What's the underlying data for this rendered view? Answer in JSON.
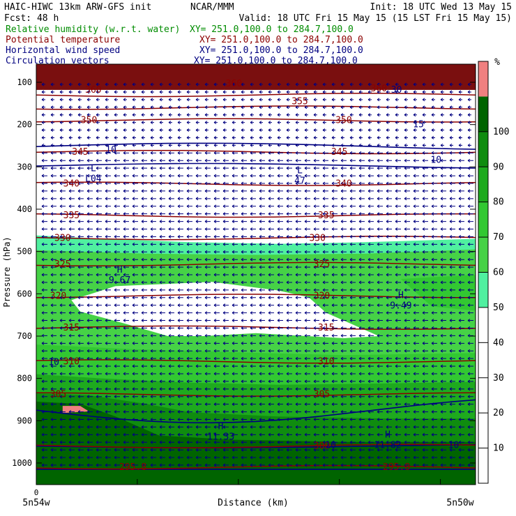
{
  "header": {
    "line1_left": "HAIC-HIWC 13km ARW-GFS init",
    "line1_center": "NCAR/MMM",
    "line1_right": "Init: 18 UTC Wed 13 May 15",
    "line2_left": "Fcst:   48 h",
    "line2_right": "Valid: 18 UTC Fri 15 May 15 (15 LST Fri 15 May 15)",
    "fields": [
      {
        "name": "Relative humidity (w.r.t. water)",
        "xy": "XY= 251.0,100.0 to 284.7,100.0",
        "color": "#008c00"
      },
      {
        "name": "Potential temperature",
        "xy": "XY= 251.0,100.0 to 284.7,100.0",
        "color": "#8b0000"
      },
      {
        "name": "Horizontal wind speed",
        "xy": "XY= 251.0,100.0 to 284.7,100.0",
        "color": "#000080"
      },
      {
        "name": "Circulation vectors",
        "xy": "XY= 251.0,100.0 to 284.7,100.0",
        "color": "#000080"
      }
    ]
  },
  "chart_data": {
    "type": "cross-section",
    "ylabel": "Pressure (hPa)",
    "xlabel": "Distance (km)",
    "x_tick_origin": "0",
    "x_left_label": "5n54w",
    "x_right_label": "5n50w",
    "y_ticks": [
      100,
      200,
      300,
      400,
      500,
      600,
      700,
      800,
      900,
      1000
    ],
    "ylim": [
      1050,
      50
    ],
    "colorbar": {
      "unit": "%",
      "levels": [
        10,
        20,
        30,
        40,
        50,
        60,
        70,
        80,
        90,
        100
      ],
      "colors": [
        "#ffffff",
        "#ffffff",
        "#ffffff",
        "#ffffff",
        "#ffffff",
        "#50f0a0",
        "#46d246",
        "#32c832",
        "#1eaa1e",
        "#0f8c0f",
        "#006400",
        "#f08080"
      ]
    },
    "theta_contours": [
      {
        "value": 360,
        "p": 130
      },
      {
        "value": 355,
        "p": 160
      },
      {
        "value": 350,
        "p": 190
      },
      {
        "value": 345,
        "p": 265
      },
      {
        "value": 340,
        "p": 340
      },
      {
        "value": 335,
        "p": 415
      },
      {
        "value": 330,
        "p": 468
      },
      {
        "value": 325,
        "p": 530
      },
      {
        "value": 320,
        "p": 605
      },
      {
        "value": 315,
        "p": 680
      },
      {
        "value": 310,
        "p": 760
      },
      {
        "value": 305,
        "p": 838
      },
      {
        "value": 300,
        "p": 960
      },
      {
        "value": 295.8,
        "p": 1010
      }
    ],
    "contour_labels": [
      {
        "text": "360",
        "x": 0.13,
        "p": 118,
        "color": "#8b0000"
      },
      {
        "text": "360",
        "x": 0.45,
        "p": 103,
        "color": "#8b0000"
      },
      {
        "text": "360",
        "x": 0.78,
        "p": 115,
        "color": "#8b0000"
      },
      {
        "text": "355",
        "x": 0.6,
        "p": 145,
        "color": "#8b0000"
      },
      {
        "text": "350",
        "x": 0.12,
        "p": 190,
        "color": "#8b0000"
      },
      {
        "text": "350",
        "x": 0.7,
        "p": 190,
        "color": "#8b0000"
      },
      {
        "text": "345",
        "x": 0.1,
        "p": 265,
        "color": "#8b0000"
      },
      {
        "text": "345",
        "x": 0.69,
        "p": 265,
        "color": "#8b0000"
      },
      {
        "text": "340",
        "x": 0.08,
        "p": 340,
        "color": "#8b0000"
      },
      {
        "text": "340",
        "x": 0.7,
        "p": 340,
        "color": "#8b0000"
      },
      {
        "text": "335",
        "x": 0.08,
        "p": 415,
        "color": "#8b0000"
      },
      {
        "text": "335",
        "x": 0.66,
        "p": 415,
        "color": "#8b0000"
      },
      {
        "text": "330",
        "x": 0.06,
        "p": 468,
        "color": "#8b0000"
      },
      {
        "text": "330",
        "x": 0.64,
        "p": 468,
        "color": "#8b0000"
      },
      {
        "text": "325",
        "x": 0.06,
        "p": 530,
        "color": "#8b0000"
      },
      {
        "text": "325",
        "x": 0.65,
        "p": 530,
        "color": "#8b0000"
      },
      {
        "text": "320",
        "x": 0.05,
        "p": 605,
        "color": "#8b0000"
      },
      {
        "text": "320",
        "x": 0.65,
        "p": 605,
        "color": "#8b0000"
      },
      {
        "text": "315",
        "x": 0.08,
        "p": 680,
        "color": "#8b0000"
      },
      {
        "text": "315",
        "x": 0.66,
        "p": 680,
        "color": "#8b0000"
      },
      {
        "text": "310",
        "x": 0.08,
        "p": 760,
        "color": "#8b0000"
      },
      {
        "text": "310",
        "x": 0.66,
        "p": 760,
        "color": "#8b0000"
      },
      {
        "text": "305",
        "x": 0.05,
        "p": 838,
        "color": "#8b0000"
      },
      {
        "text": "305",
        "x": 0.65,
        "p": 838,
        "color": "#8b0000"
      },
      {
        "text": "300",
        "x": 0.65,
        "p": 960,
        "color": "#8b0000"
      },
      {
        "text": "295.8",
        "x": 0.22,
        "p": 1010,
        "color": "#8b0000"
      },
      {
        "text": "295.8",
        "x": 0.82,
        "p": 1010,
        "color": "#8b0000"
      },
      {
        "text": "30",
        "x": 0.82,
        "p": 118,
        "color": "#000080"
      },
      {
        "text": "15",
        "x": 0.87,
        "p": 200,
        "color": "#000080"
      },
      {
        "text": "10",
        "x": 0.17,
        "p": 260,
        "color": "#000080"
      },
      {
        "text": "10",
        "x": 0.91,
        "p": 284,
        "color": "#000080"
      },
      {
        "text": "10",
        "x": 0.04,
        "p": 762,
        "color": "#000080"
      },
      {
        "text": "10",
        "x": 0.67,
        "p": 958,
        "color": "#000080"
      },
      {
        "text": "10",
        "x": 0.95,
        "p": 958,
        "color": "#000080"
      }
    ],
    "extrema": [
      {
        "type": "L",
        "value": "L04",
        "x": 0.13,
        "p": 320
      },
      {
        "type": "L",
        "value": "47",
        "x": 0.6,
        "p": 325
      },
      {
        "type": "H",
        "value": "9.67",
        "x": 0.19,
        "p": 560
      },
      {
        "type": "H",
        "value": "9.49",
        "x": 0.83,
        "p": 620
      },
      {
        "type": "H",
        "value": "11.33",
        "x": 0.42,
        "p": 930
      },
      {
        "type": "H",
        "value": "11.82",
        "x": 0.8,
        "p": 950
      }
    ]
  }
}
